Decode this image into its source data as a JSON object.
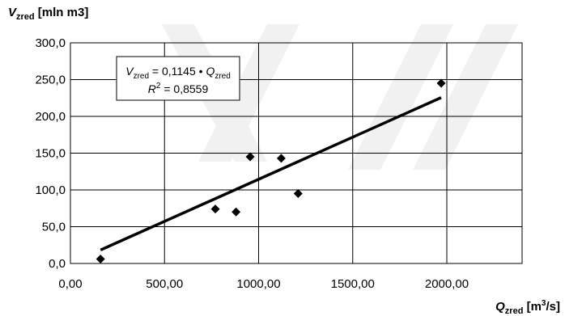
{
  "chart_data": {
    "type": "scatter",
    "ylabel": {
      "symbol": "V",
      "subscript": "zred",
      "unit": " [mln m3]"
    },
    "xlabel": {
      "symbol": "Q",
      "subscript": "zred",
      "unit_pre": " [m",
      "unit_sup": "3",
      "unit_post": "/s]"
    },
    "xlim": [
      0,
      2400
    ],
    "ylim": [
      0,
      300
    ],
    "xticks": [
      0,
      500,
      1000,
      1500,
      2000
    ],
    "xtick_labels": [
      "0,00",
      "500,00",
      "1000,00",
      "1500,00",
      "2000,00"
    ],
    "yticks": [
      0,
      50,
      100,
      150,
      200,
      250,
      300
    ],
    "ytick_labels": [
      "0,0",
      "50,0",
      "100,0",
      "150,0",
      "200,0",
      "250,0",
      "300,0"
    ],
    "grid": true,
    "points": [
      {
        "x": 160,
        "y": 6
      },
      {
        "x": 770,
        "y": 74
      },
      {
        "x": 880,
        "y": 70
      },
      {
        "x": 955,
        "y": 145
      },
      {
        "x": 1120,
        "y": 143
      },
      {
        "x": 1210,
        "y": 95
      },
      {
        "x": 1970,
        "y": 245
      }
    ],
    "trendline": {
      "slope": 0.1145,
      "x_start": 160,
      "x_end": 1970
    },
    "equation": {
      "line1": {
        "lhs_symbol": "V",
        "lhs_sub": "zred",
        "mid": " = 0,1145 • ",
        "rhs_symbol": "Q",
        "rhs_sub": "zred"
      },
      "line2": {
        "symbol": "R",
        "sup": "2",
        "rest": " = 0,8559"
      }
    },
    "colors": {
      "marker": "#000000",
      "line": "#000000",
      "grid": "#000000"
    }
  }
}
